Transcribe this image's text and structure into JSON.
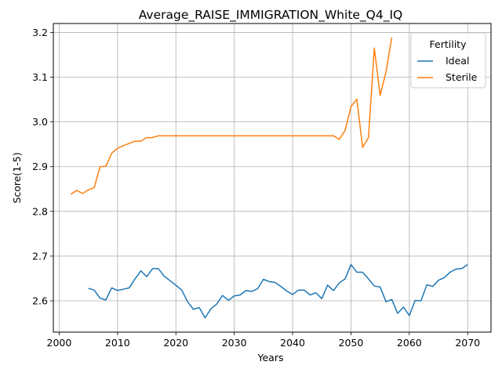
{
  "chart_data": {
    "type": "line",
    "title": "Average_RAISE_IMMIGRATION_White_Q4_IQ",
    "xlabel": "Years",
    "ylabel": "Score(1-5)",
    "xlim": [
      1999,
      2074
    ],
    "ylim": [
      2.53,
      3.22
    ],
    "x_ticks": [
      2000,
      2010,
      2020,
      2030,
      2040,
      2050,
      2060,
      2070
    ],
    "y_ticks": [
      2.6,
      2.7,
      2.8,
      2.9,
      3.0,
      3.1,
      3.2
    ],
    "x_tick_labels": [
      "2000",
      "2010",
      "2020",
      "2030",
      "2040",
      "2050",
      "2060",
      "2070"
    ],
    "y_tick_labels": [
      "2.6",
      "2.7",
      "2.8",
      "2.9",
      "3.0",
      "3.1",
      "3.2"
    ],
    "grid": true,
    "legend": {
      "title": "Fertility",
      "position": "top-right"
    },
    "series": [
      {
        "name": "Ideal",
        "color": "#1f77b4",
        "x": [
          2005,
          2006,
          2007,
          2008,
          2009,
          2010,
          2011,
          2012,
          2013,
          2014,
          2015,
          2016,
          2017,
          2018,
          2019,
          2020,
          2021,
          2022,
          2023,
          2024,
          2025,
          2026,
          2027,
          2028,
          2029,
          2030,
          2031,
          2032,
          2033,
          2034,
          2035,
          2036,
          2037,
          2038,
          2039,
          2040,
          2041,
          2042,
          2043,
          2044,
          2045,
          2046,
          2047,
          2048,
          2049,
          2050,
          2051,
          2052,
          2053,
          2054,
          2055,
          2056,
          2057,
          2058,
          2059,
          2060,
          2061,
          2062,
          2063,
          2064,
          2065,
          2066,
          2067,
          2068,
          2069,
          2070
        ],
        "y": [
          2.628,
          2.624,
          2.606,
          2.602,
          2.629,
          2.623,
          2.626,
          2.629,
          2.649,
          2.667,
          2.654,
          2.672,
          2.672,
          2.655,
          2.645,
          2.635,
          2.624,
          2.598,
          2.581,
          2.585,
          2.562,
          2.582,
          2.593,
          2.612,
          2.601,
          2.611,
          2.613,
          2.623,
          2.621,
          2.627,
          2.648,
          2.643,
          2.641,
          2.632,
          2.622,
          2.614,
          2.624,
          2.624,
          2.613,
          2.618,
          2.605,
          2.635,
          2.623,
          2.64,
          2.649,
          2.681,
          2.664,
          2.664,
          2.649,
          2.633,
          2.631,
          2.598,
          2.603,
          2.572,
          2.586,
          2.567,
          2.601,
          2.6,
          2.636,
          2.632,
          2.646,
          2.652,
          2.664,
          2.671,
          2.672,
          2.681
        ]
      },
      {
        "name": "Sterile",
        "color": "#ff7f0e",
        "x": [
          2002,
          2003,
          2004,
          2005,
          2006,
          2007,
          2008,
          2009,
          2010,
          2011,
          2012,
          2013,
          2014,
          2015,
          2016,
          2017,
          2018,
          2019,
          2020,
          2021,
          2022,
          2023,
          2024,
          2025,
          2026,
          2027,
          2028,
          2029,
          2030,
          2031,
          2032,
          2033,
          2034,
          2035,
          2036,
          2037,
          2038,
          2039,
          2040,
          2041,
          2042,
          2043,
          2044,
          2045,
          2046,
          2047,
          2048,
          2049,
          2050,
          2051,
          2052,
          2053,
          2054,
          2055,
          2056,
          2057
        ],
        "y": [
          2.838,
          2.847,
          2.84,
          2.848,
          2.853,
          2.9,
          2.901,
          2.93,
          2.941,
          2.947,
          2.952,
          2.957,
          2.957,
          2.965,
          2.965,
          2.969,
          2.969,
          2.969,
          2.969,
          2.969,
          2.969,
          2.969,
          2.969,
          2.969,
          2.969,
          2.969,
          2.969,
          2.969,
          2.969,
          2.969,
          2.969,
          2.969,
          2.969,
          2.969,
          2.969,
          2.969,
          2.969,
          2.969,
          2.969,
          2.969,
          2.969,
          2.969,
          2.969,
          2.969,
          2.969,
          2.969,
          2.961,
          2.981,
          3.034,
          3.051,
          2.943,
          2.965,
          3.165,
          3.059,
          3.112,
          3.189
        ]
      }
    ]
  }
}
